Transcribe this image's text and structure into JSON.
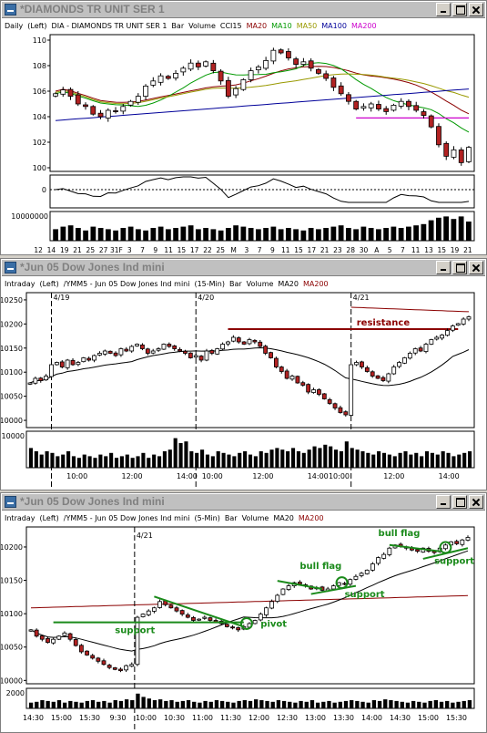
{
  "windows": [
    {
      "id": "diamonds",
      "title": "*DIAMONDS TR UNIT SER 1",
      "info": {
        "period": "Daily",
        "axis": "(Left)",
        "symbol": "DIA - DIAMONDS TR UNIT SER 1",
        "chart_type": "Bar",
        "volume_label": "Volume",
        "ind1": "CCI15",
        "ind2": "MA20",
        "ind3": "MA10",
        "ind4": "MA50",
        "ind5": "MA100",
        "ind6": "MA200"
      },
      "colors": {
        "MA20": "#8b0000",
        "MA10": "#009900",
        "MA50": "#999900",
        "MA100": "#000099",
        "MA200": "#cc00cc"
      }
    },
    {
      "id": "jun05-15min",
      "title": "*Jun 05  Dow Jones Ind mini",
      "info": {
        "period": "Intraday",
        "axis": "(Left)",
        "symbol": "/YMM5 - Jun 05  Dow Jones Ind mini",
        "interval": "(15-Min)",
        "chart_type": "Bar",
        "volume_label": "Volume",
        "ind1": "MA20",
        "ind2": "MA200"
      }
    },
    {
      "id": "jun05-5min",
      "title": "*Jun 05  Dow Jones Ind mini",
      "info": {
        "period": "Intraday",
        "axis": "(Left)",
        "symbol": "/YMM5 - Jun 05  Dow Jones Ind mini",
        "interval": "(5-Min)",
        "chart_type": "Bar",
        "volume_label": "Volume",
        "ind1": "MA20",
        "ind2": "MA200"
      }
    }
  ],
  "chart_data": [
    {
      "type": "candlestick",
      "y_ticks": [
        "110",
        "108",
        "106",
        "104",
        "102",
        "100"
      ],
      "ylim": [
        100,
        110
      ],
      "x_ticks": [
        "12",
        "14",
        "19",
        "21",
        "25",
        "27",
        "31F",
        "3",
        "7",
        "9",
        "11",
        "15",
        "17",
        "22",
        "25",
        "M",
        "3",
        "7",
        "9",
        "11",
        "15",
        "17",
        "21",
        "23",
        "28",
        "30",
        "A",
        "5",
        "7",
        "11",
        "13",
        "15",
        "19",
        "21"
      ],
      "close_values": [
        105.8,
        106.1,
        105.6,
        105.0,
        104.8,
        104.2,
        104.0,
        104.5,
        104.4,
        104.8,
        105.2,
        105.6,
        106.4,
        106.8,
        107.2,
        107.0,
        107.4,
        107.8,
        108.2,
        107.9,
        108.3,
        107.6,
        106.8,
        105.6,
        106.2,
        106.9,
        107.6,
        107.9,
        108.4,
        109.2,
        109.0,
        108.6,
        108.1,
        108.3,
        107.8,
        107.4,
        107.0,
        106.3,
        105.8,
        105.2,
        104.6,
        104.8,
        105.0,
        104.6,
        104.4,
        104.9,
        105.2,
        104.8,
        104.5,
        104.1,
        103.2,
        101.8,
        100.9,
        101.4,
        100.4,
        101.6
      ],
      "ma_lines": [
        "MA20",
        "MA10",
        "MA50",
        "MA100"
      ],
      "support_line_value": 103.9,
      "indicator_label": "CCI15",
      "indicator_zero_tick": "0",
      "volume_tick": "10000000",
      "volume_values": [
        0.45,
        0.55,
        0.6,
        0.5,
        0.4,
        0.55,
        0.5,
        0.45,
        0.4,
        0.5,
        0.55,
        0.45,
        0.4,
        0.5,
        0.55,
        0.45,
        0.5,
        0.55,
        0.6,
        0.45,
        0.5,
        0.45,
        0.4,
        0.5,
        0.6,
        0.55,
        0.5,
        0.45,
        0.5,
        0.55,
        0.45,
        0.5,
        0.45,
        0.4,
        0.5,
        0.45,
        0.5,
        0.55,
        0.6,
        0.5,
        0.45,
        0.55,
        0.5,
        0.45,
        0.5,
        0.55,
        0.5,
        0.55,
        0.6,
        0.65,
        0.8,
        0.9,
        0.95,
        0.85,
        0.95,
        0.75
      ]
    },
    {
      "type": "candlestick",
      "y_ticks": [
        "10250",
        "10200",
        "10150",
        "10100",
        "10050",
        "10000"
      ],
      "ylim": [
        9985,
        10265
      ],
      "x_ticks": [
        "10:00",
        "12:00",
        "14:00",
        "10:00",
        "12:00",
        "14:00",
        "10:00",
        "12:00",
        "14:00"
      ],
      "date_markers": [
        "4/19",
        "4/20",
        "4/21"
      ],
      "close_values": [
        10075,
        10085,
        10080,
        10090,
        10115,
        10120,
        10110,
        10125,
        10115,
        10120,
        10130,
        10125,
        10135,
        10140,
        10145,
        10140,
        10135,
        10150,
        10145,
        10155,
        10160,
        10150,
        10140,
        10145,
        10150,
        10160,
        10155,
        10150,
        10145,
        10140,
        10130,
        10135,
        10125,
        10145,
        10140,
        10150,
        10160,
        10165,
        10175,
        10165,
        10160,
        10170,
        10165,
        10155,
        10140,
        10130,
        10110,
        10100,
        10085,
        10090,
        10075,
        10070,
        10055,
        10060,
        10050,
        10040,
        10030,
        10020,
        10010,
        10005,
        10115,
        10120,
        10110,
        10100,
        10090,
        10085,
        10080,
        10095,
        10110,
        10120,
        10130,
        10140,
        10150,
        10145,
        10160,
        10170,
        10175,
        10180,
        10190,
        10200,
        10205,
        10215,
        10220
      ],
      "annotation_text": "resistance",
      "resistance_value": 10193,
      "volume_tick": "10000",
      "volume_values": [
        0.6,
        0.5,
        0.4,
        0.5,
        0.45,
        0.35,
        0.4,
        0.5,
        0.35,
        0.3,
        0.4,
        0.35,
        0.3,
        0.4,
        0.35,
        0.45,
        0.3,
        0.35,
        0.4,
        0.3,
        0.35,
        0.45,
        0.3,
        0.4,
        0.35,
        0.5,
        0.55,
        0.9,
        0.75,
        0.8,
        0.5,
        0.45,
        0.55,
        0.4,
        0.35,
        0.5,
        0.45,
        0.4,
        0.35,
        0.45,
        0.5,
        0.4,
        0.35,
        0.5,
        0.45,
        0.55,
        0.6,
        0.55,
        0.5,
        0.6,
        0.5,
        0.45,
        0.55,
        0.65,
        0.6,
        0.7,
        0.65,
        0.55,
        0.5,
        0.8,
        0.6,
        0.55,
        0.5,
        0.45,
        0.4,
        0.5,
        0.45,
        0.4,
        0.35,
        0.45,
        0.5,
        0.4,
        0.45,
        0.35,
        0.5,
        0.45,
        0.4,
        0.5,
        0.45,
        0.35,
        0.4,
        0.45,
        0.5
      ]
    },
    {
      "type": "candlestick",
      "y_ticks": [
        "10200",
        "10150",
        "10100",
        "10050",
        "10000"
      ],
      "ylim": [
        9995,
        10230
      ],
      "x_ticks": [
        "14:30",
        "15:00",
        "15:30",
        "9:30",
        "10:00",
        "10:30",
        "11:00",
        "11:30",
        "12:00",
        "12:30",
        "13:00",
        "13:30",
        "14:00",
        "14:30",
        "15:00",
        "15:30"
      ],
      "date_markers": [
        "4/21"
      ],
      "close_values": [
        10075,
        10065,
        10060,
        10055,
        10060,
        10065,
        10070,
        10060,
        10050,
        10040,
        10035,
        10030,
        10025,
        10020,
        10015,
        10012,
        10010,
        10018,
        10020,
        10095,
        10100,
        10105,
        10110,
        10120,
        10115,
        10110,
        10105,
        10100,
        10095,
        10090,
        10092,
        10095,
        10090,
        10088,
        10085,
        10080,
        10078,
        10075,
        10080,
        10085,
        10090,
        10100,
        10110,
        10120,
        10130,
        10140,
        10145,
        10150,
        10148,
        10145,
        10140,
        10142,
        10138,
        10140,
        10145,
        10150,
        10148,
        10155,
        10160,
        10165,
        10170,
        10180,
        10190,
        10195,
        10205,
        10210,
        10208,
        10205,
        10202,
        10200,
        10205,
        10200,
        10198,
        10205,
        10210,
        10215,
        10212,
        10218,
        10222
      ],
      "annotations": [
        {
          "text": "support"
        },
        {
          "text": "pivot"
        },
        {
          "text": "bull flag"
        },
        {
          "text": "support"
        },
        {
          "text": "bull flag"
        },
        {
          "text": "support"
        }
      ],
      "volume_tick": "2000",
      "volume_values": [
        0.35,
        0.4,
        0.5,
        0.45,
        0.4,
        0.5,
        0.35,
        0.45,
        0.4,
        0.35,
        0.45,
        0.5,
        0.4,
        0.45,
        0.35,
        0.5,
        0.45,
        0.55,
        0.5,
        0.9,
        0.7,
        0.6,
        0.5,
        0.55,
        0.45,
        0.5,
        0.4,
        0.45,
        0.5,
        0.4,
        0.35,
        0.45,
        0.4,
        0.5,
        0.45,
        0.4,
        0.35,
        0.45,
        0.5,
        0.45,
        0.55,
        0.5,
        0.45,
        0.4,
        0.5,
        0.45,
        0.4,
        0.35,
        0.45,
        0.4,
        0.5,
        0.35,
        0.4,
        0.45,
        0.35,
        0.4,
        0.45,
        0.5,
        0.45,
        0.4,
        0.35,
        0.5,
        0.45,
        0.55,
        0.5,
        0.45,
        0.4,
        0.35,
        0.45,
        0.4,
        0.35,
        0.45,
        0.5,
        0.4,
        0.45,
        0.35,
        0.4,
        0.45,
        0.5
      ]
    }
  ]
}
